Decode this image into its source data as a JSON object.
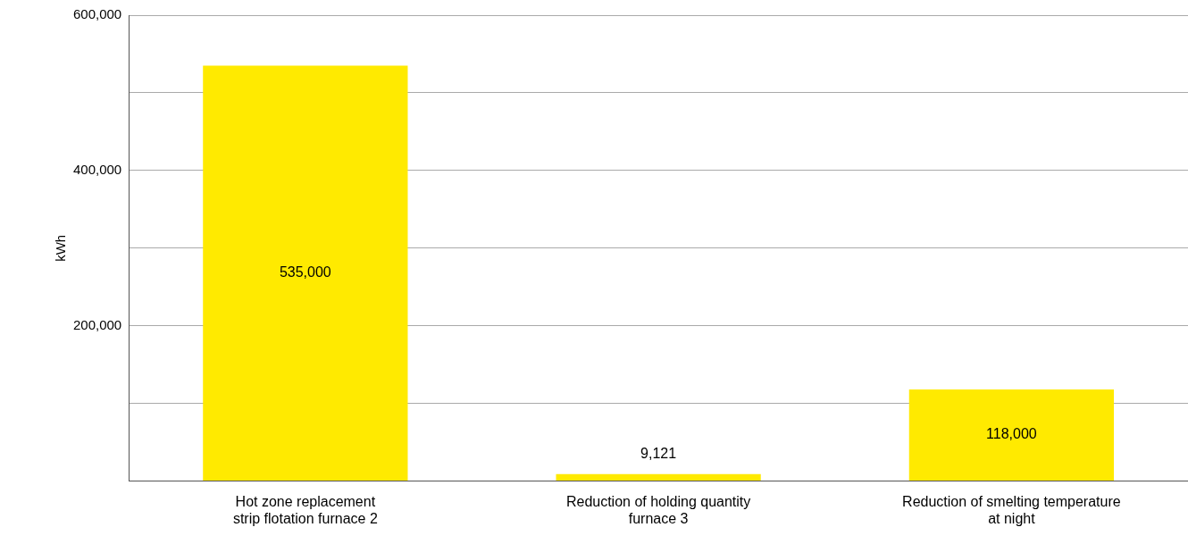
{
  "chart_data": {
    "type": "bar",
    "ylabel": "kWh",
    "categories": [
      "Hot zone replacement\nstrip flotation furnace 2",
      "Reduction of holding quantity\nfurnace 3",
      "Reduction of smelting temperature\nat night"
    ],
    "values": [
      535000,
      9121,
      118000
    ],
    "value_labels": [
      "535,000",
      "9,121",
      "118,000"
    ],
    "color": "#ffea00",
    "ylim": [
      0,
      600000
    ],
    "yticks": [
      {
        "value": 0,
        "label": null
      },
      {
        "value": 100000,
        "label": null
      },
      "200,000",
      {
        "value": 300000,
        "label": null
      },
      "400,000",
      {
        "value": 500000,
        "label": null
      },
      "600,000"
    ],
    "grid": "y",
    "legend": false
  }
}
